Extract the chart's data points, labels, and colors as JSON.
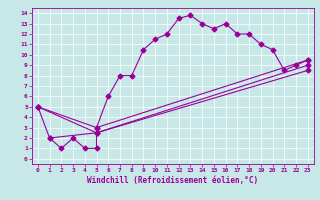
{
  "xlabel": "Windchill (Refroidissement éolien,°C)",
  "bg_color": "#c8e8e8",
  "line_color": "#990099",
  "grid_color": "#ffffff",
  "xlim": [
    -0.5,
    23.5
  ],
  "ylim": [
    -0.5,
    14.5
  ],
  "xticks": [
    0,
    1,
    2,
    3,
    4,
    5,
    6,
    7,
    8,
    9,
    10,
    11,
    12,
    13,
    14,
    15,
    16,
    17,
    18,
    19,
    20,
    21,
    22,
    23
  ],
  "yticks": [
    0,
    1,
    2,
    3,
    4,
    5,
    6,
    7,
    8,
    9,
    10,
    11,
    12,
    13,
    14
  ],
  "curve1_x": [
    0,
    1,
    2,
    3,
    4,
    5,
    5,
    6,
    7,
    8,
    9,
    10,
    11,
    12,
    13,
    14,
    15,
    16,
    17,
    18,
    19,
    20,
    21,
    22,
    23
  ],
  "curve1_y": [
    5,
    2,
    1,
    2,
    1,
    1,
    3,
    6,
    8,
    8,
    10.5,
    11.5,
    12,
    13.5,
    13.8,
    13,
    12.5,
    13,
    12,
    12,
    11,
    10.5,
    8.5,
    9,
    9.5
  ],
  "curve2_x": [
    0,
    5,
    23
  ],
  "curve2_y": [
    5,
    3,
    9.5
  ],
  "curve3_x": [
    0,
    5,
    23
  ],
  "curve3_y": [
    5,
    2.5,
    9.0
  ],
  "curve4_x": [
    1,
    5,
    23
  ],
  "curve4_y": [
    2,
    2.5,
    8.5
  ]
}
